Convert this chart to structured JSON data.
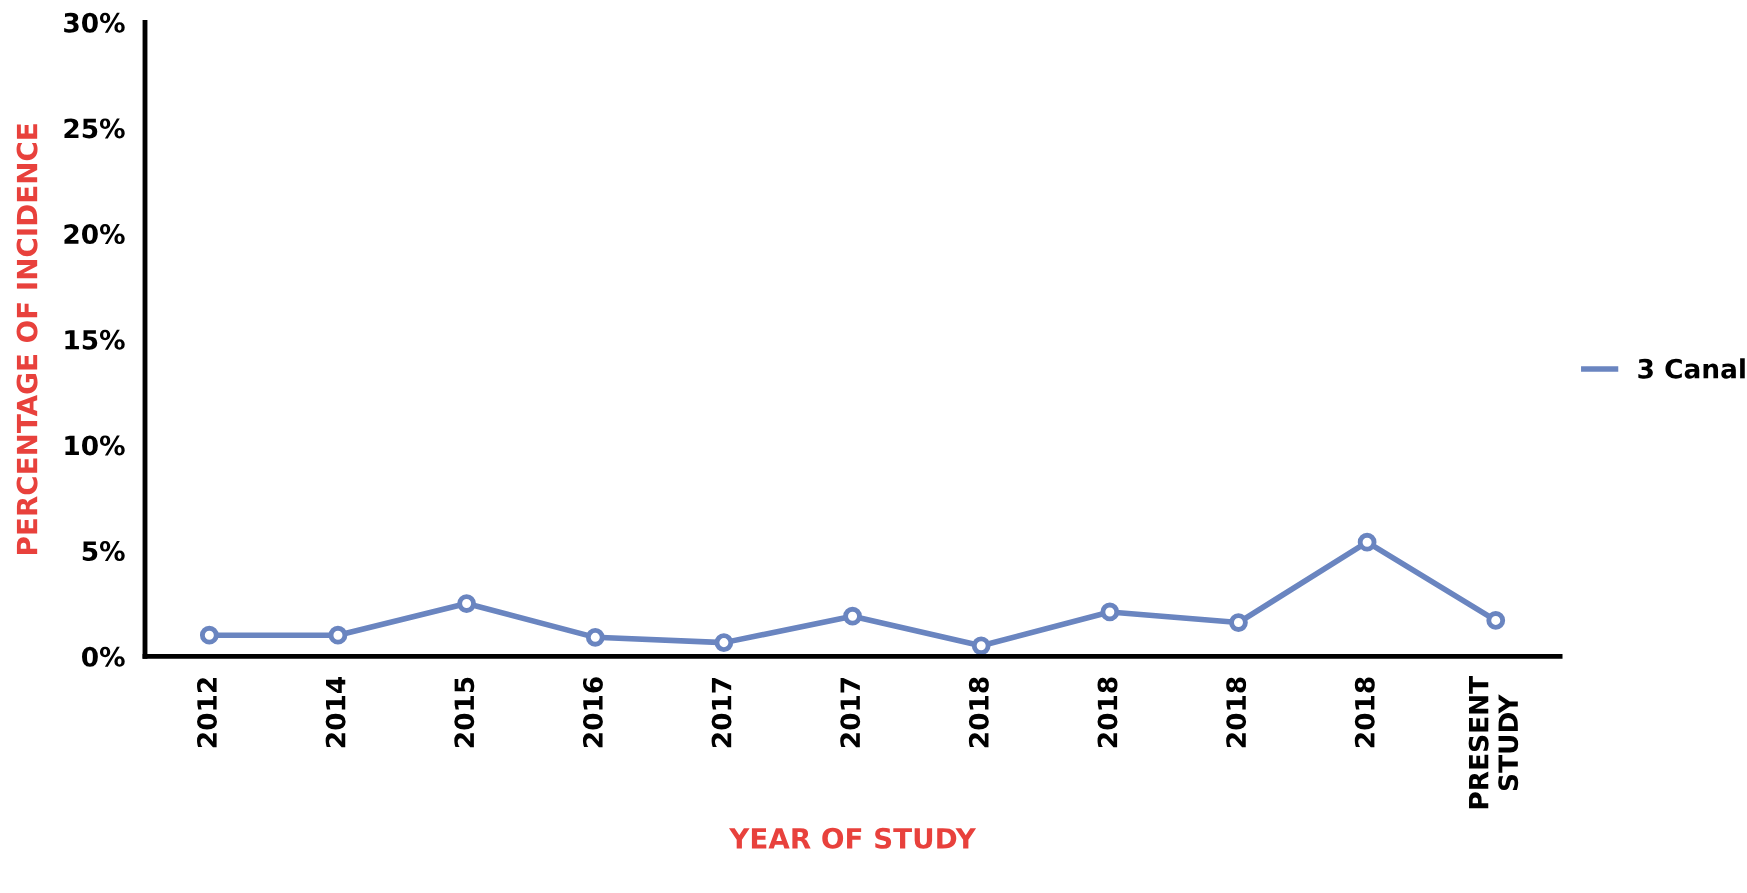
{
  "chart_data": {
    "type": "line",
    "xlabel": "YEAR OF STUDY",
    "ylabel": "PERCENTAGE OF INCIDENCE",
    "categories": [
      "2012",
      "2014",
      "2015",
      "2016",
      "2017",
      "2017",
      "2018",
      "2018",
      "2018",
      "2018",
      "PRESENT\nSTUDY"
    ],
    "series": [
      {
        "name": "3 Canal",
        "color": "#6a85c0",
        "values": [
          1.0,
          1.0,
          2.5,
          0.9,
          0.65,
          1.9,
          0.5,
          2.1,
          1.6,
          5.4,
          1.7
        ]
      }
    ],
    "ylim": [
      0,
      30
    ],
    "yticks": [
      {
        "value": 0,
        "label": "0%"
      },
      {
        "value": 5,
        "label": "5%"
      },
      {
        "value": 10,
        "label": "10%"
      },
      {
        "value": 15,
        "label": "15%"
      },
      {
        "value": 20,
        "label": "20%"
      },
      {
        "value": 25,
        "label": "25%"
      },
      {
        "value": 30,
        "label": "30%"
      }
    ],
    "marker": "circle",
    "line_style": "solid",
    "legend": "right",
    "grid": false
  }
}
